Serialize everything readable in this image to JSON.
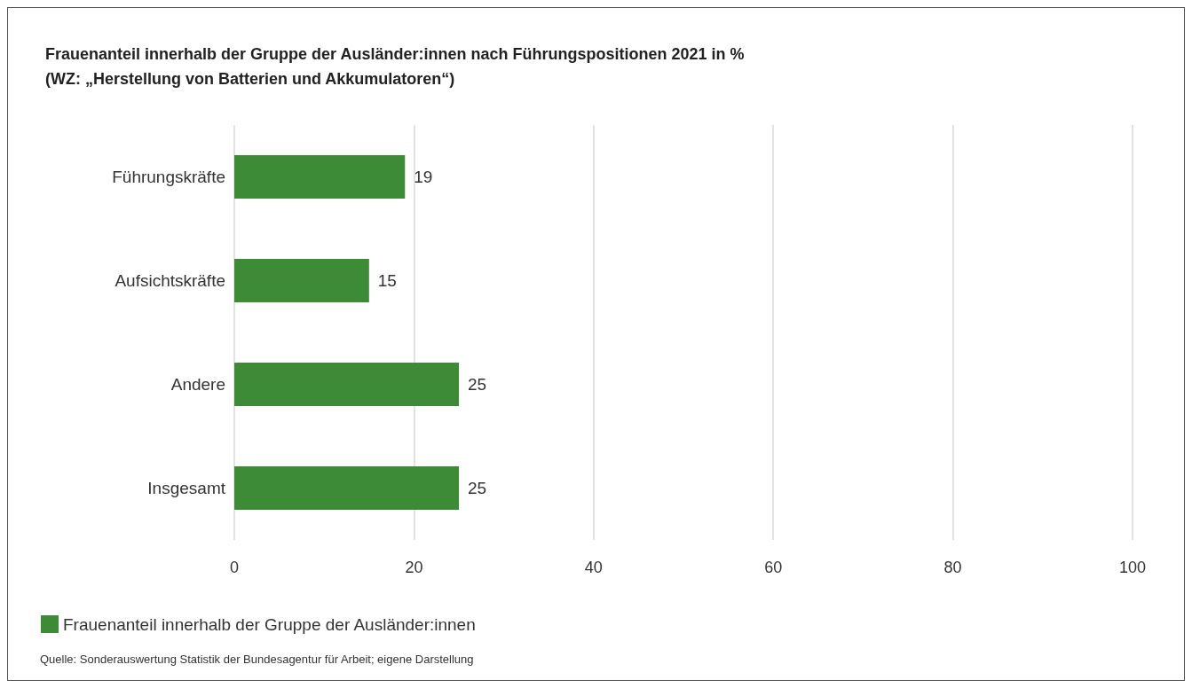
{
  "chart_data": {
    "type": "bar",
    "orientation": "horizontal",
    "title": "Frauenanteil innerhalb der Gruppe der Ausländer:innen nach Führungspositionen 2021 in %",
    "subtitle": "(WZ: „Herstellung von Batterien und Akkumulatoren“)",
    "categories": [
      "Führungskräfte",
      "Aufsichtskräfte",
      "Andere",
      "Insgesamt"
    ],
    "series": [
      {
        "name": "Frauenanteil innerhalb der Gruppe der Ausländer:innen",
        "color": "#3d8b37",
        "values": [
          19,
          15,
          25,
          25
        ]
      }
    ],
    "xlim": [
      0,
      100
    ],
    "xticks": [
      0,
      20,
      40,
      60,
      80,
      100
    ],
    "grid": "x",
    "data_labels": true,
    "legend": "bottom left",
    "annotations": [
      "Quelle: Sonderauswertung Statistik der Bundesagentur für Arbeit; eigene Darstellung"
    ]
  }
}
